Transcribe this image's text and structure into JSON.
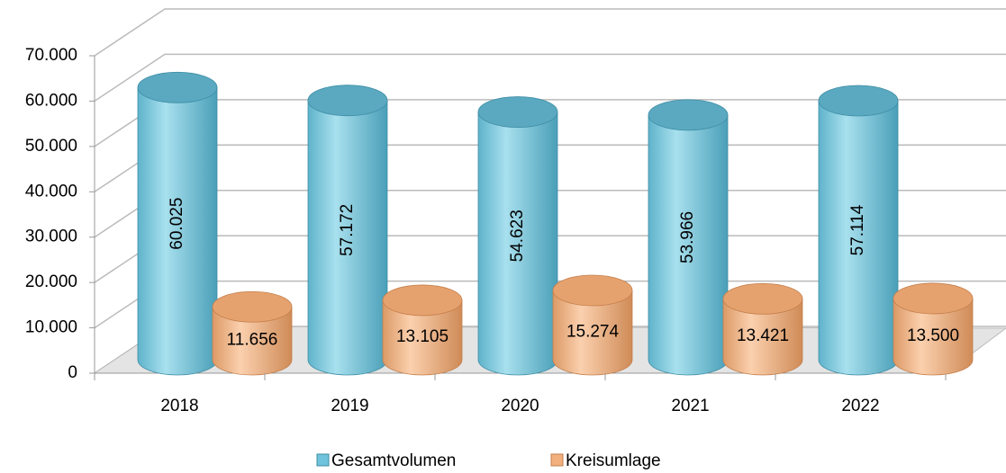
{
  "chart_data": {
    "type": "bar3d",
    "categories": [
      "2018",
      "2019",
      "2020",
      "2021",
      "2022"
    ],
    "series": [
      {
        "name": "Gesamtvolumen",
        "color": "#6fc3dc",
        "values": [
          60025,
          57172,
          54623,
          53966,
          57114
        ],
        "value_labels": [
          "60.025",
          "57.172",
          "54.623",
          "53.966",
          "57.114"
        ]
      },
      {
        "name": "Kreisumlage",
        "color": "#f2b07e",
        "values": [
          11656,
          13105,
          15274,
          13421,
          13500
        ],
        "value_labels": [
          "11.656",
          "13.105",
          "15.274",
          "13.421",
          "13.500"
        ]
      }
    ],
    "ylim": [
      0,
      70000
    ],
    "yticks": [
      0,
      {
        "value": 10000,
        "label": "10.000"
      },
      {
        "value": 20000,
        "label": "20.000"
      },
      {
        "value": 30000,
        "label": "30.000"
      },
      {
        "value": 40000,
        "label": "40.000"
      },
      {
        "value": 50000,
        "label": "50.000"
      },
      {
        "value": 60000,
        "label": "60.000"
      },
      {
        "value": 70000,
        "label": "70.000"
      }
    ],
    "grid": true,
    "legend": "bottom"
  }
}
